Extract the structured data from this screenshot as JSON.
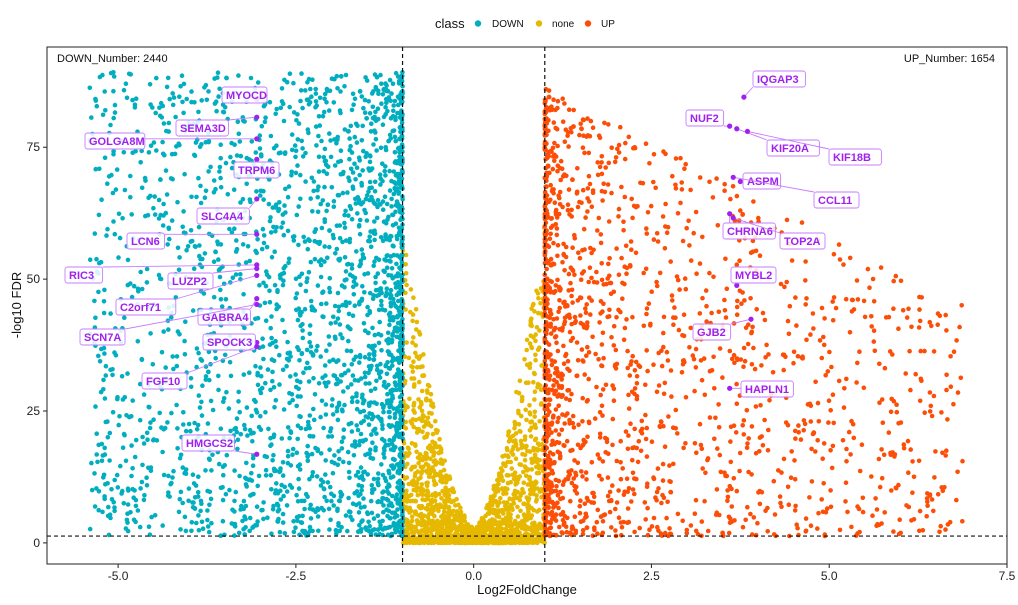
{
  "chart_data": {
    "type": "scatter",
    "xlabel": "Log2FoldChange",
    "ylabel": "-log10 FDR",
    "xlim": [
      -6.0,
      7.5
    ],
    "ylim": [
      -4,
      94
    ],
    "x_ticks": [
      -5.0,
      -2.5,
      0.0,
      2.5,
      5.0,
      7.5
    ],
    "x_tick_labels": [
      "-5.0",
      "-2.5",
      "0.0",
      "2.5",
      "5.0",
      "7.5"
    ],
    "y_ticks": [
      0,
      25,
      50,
      75
    ],
    "y_tick_labels": [
      "0",
      "25",
      "50",
      "75"
    ],
    "grid": false,
    "thresholds": {
      "log2fc": [
        -1,
        1
      ],
      "neg_log10_fdr": 1.3
    },
    "legend": {
      "title": "class",
      "position": "top",
      "entries": [
        {
          "name": "DOWN",
          "color": "#00aebf"
        },
        {
          "name": "none",
          "color": "#e6b800"
        },
        {
          "name": "UP",
          "color": "#fc4e07"
        }
      ]
    },
    "annotations": {
      "down_number": "DOWN_Number: 2440",
      "up_number": "UP_Number: 1654"
    },
    "label_color": "#a020f0",
    "series": [
      {
        "name": "DOWN",
        "color": "#00aebf",
        "count": 2440
      },
      {
        "name": "none",
        "color": "#e6b800"
      },
      {
        "name": "UP",
        "color": "#fc4e07",
        "count": 1654
      }
    ],
    "labeled_genes": [
      {
        "gene": "IQGAP3",
        "x": 3.8,
        "y": 84.5
      },
      {
        "gene": "NUF2",
        "x": 3.6,
        "y": 79.0
      },
      {
        "gene": "KIF20A",
        "x": 3.7,
        "y": 78.5
      },
      {
        "gene": "KIF18B",
        "x": 3.85,
        "y": 78.0
      },
      {
        "gene": "ASPM",
        "x": 3.75,
        "y": 68.5
      },
      {
        "gene": "CCL11",
        "x": 3.65,
        "y": 69.3
      },
      {
        "gene": "CHRNA6",
        "x": 3.6,
        "y": 62.4
      },
      {
        "gene": "TOP2A",
        "x": 3.65,
        "y": 61.6
      },
      {
        "gene": "MYBL2",
        "x": 3.7,
        "y": 48.8
      },
      {
        "gene": "GJB2",
        "x": 3.9,
        "y": 42.4
      },
      {
        "gene": "HAPLN1",
        "x": 3.6,
        "y": 29.3
      },
      {
        "gene": "MYOCD",
        "x": -3.05,
        "y": 84.1
      },
      {
        "gene": "SEMA3D",
        "x": -3.05,
        "y": 80.7
      },
      {
        "gene": "GOLGA8M",
        "x": -3.05,
        "y": 76.6
      },
      {
        "gene": "TRPM6",
        "x": -3.05,
        "y": 72.7
      },
      {
        "gene": "SLC4A4",
        "x": -3.05,
        "y": 65.2
      },
      {
        "gene": "LCN6",
        "x": -3.05,
        "y": 58.5
      },
      {
        "gene": "RIC3",
        "x": -3.05,
        "y": 52.7
      },
      {
        "gene": "LUZP2",
        "x": -3.05,
        "y": 52.0
      },
      {
        "gene": "C2orf71",
        "x": -3.05,
        "y": 50.7
      },
      {
        "gene": "GABRA4",
        "x": -3.05,
        "y": 46.3
      },
      {
        "gene": "SCN7A",
        "x": -3.05,
        "y": 45.2
      },
      {
        "gene": "SPOCK3",
        "x": -3.05,
        "y": 38.0
      },
      {
        "gene": "FGF10",
        "x": -3.05,
        "y": 37.2
      },
      {
        "gene": "HMGCS2",
        "x": -3.05,
        "y": 16.8
      }
    ]
  }
}
